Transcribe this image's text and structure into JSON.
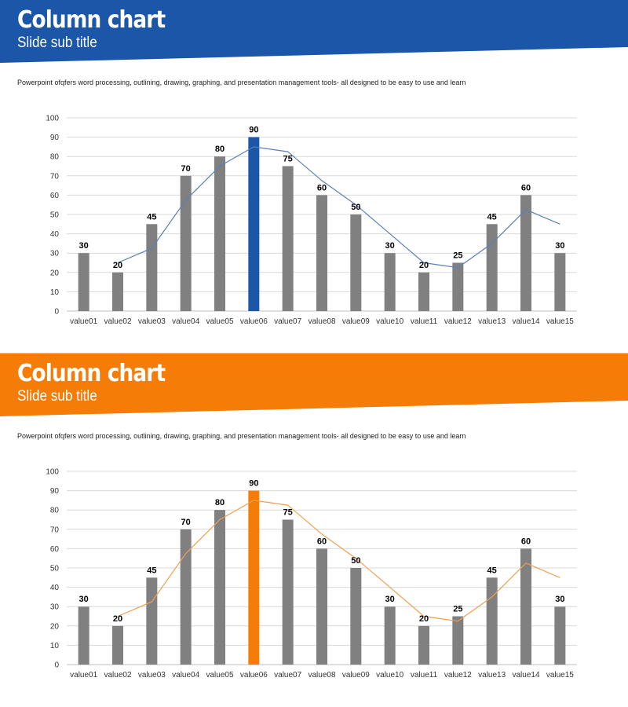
{
  "slides": [
    {
      "title": "Column chart",
      "subtitle": "Slide sub title",
      "description": "Powerpoint ofqfers word processing, outlining, drawing, graphing, and presentation management tools- all designed to be easy to use and learn",
      "banner_color": "#1b56a8",
      "banner_color_dark": "#144386",
      "highlight_color": "#1b56a8",
      "line_color": "#5b80b8"
    },
    {
      "title": "Column chart",
      "subtitle": "Slide sub title",
      "description": "Powerpoint ofqfers word processing, outlining, drawing, graphing, and presentation management tools- all designed to be easy to use and learn",
      "banner_color": "#f47c07",
      "banner_color_dark": "#d96a02",
      "highlight_color": "#f47c07",
      "line_color": "#f0a050"
    }
  ],
  "chart_data": [
    {
      "type": "bar",
      "categories": [
        "value01",
        "value02",
        "value03",
        "value04",
        "value05",
        "value06",
        "value07",
        "value08",
        "value09",
        "value10",
        "value11",
        "value12",
        "value13",
        "value14",
        "value15"
      ],
      "values": [
        30,
        20,
        45,
        70,
        80,
        90,
        75,
        60,
        50,
        30,
        20,
        25,
        45,
        60,
        30
      ],
      "data_labels": [
        "30",
        "20",
        "45",
        "70",
        "80",
        "90",
        "75",
        "60",
        "50",
        "30",
        "20",
        "25",
        "45",
        "60",
        "30"
      ],
      "highlight_index": 5,
      "bar_color": "#808080",
      "trendline": {
        "type": "moving-average",
        "color": "#5b80b8"
      },
      "ylim": [
        0,
        100
      ],
      "yticks": [
        "0",
        "10",
        "20",
        "30",
        "40",
        "50",
        "60",
        "70",
        "80",
        "90",
        "100"
      ],
      "grid": true
    },
    {
      "type": "bar",
      "categories": [
        "value01",
        "value02",
        "value03",
        "value04",
        "value05",
        "value06",
        "value07",
        "value08",
        "value09",
        "value10",
        "value11",
        "value12",
        "value13",
        "value14",
        "value15"
      ],
      "values": [
        30,
        20,
        45,
        70,
        80,
        90,
        75,
        60,
        50,
        30,
        20,
        25,
        45,
        60,
        30
      ],
      "data_labels": [
        "30",
        "20",
        "45",
        "70",
        "80",
        "90",
        "75",
        "60",
        "50",
        "30",
        "20",
        "25",
        "45",
        "60",
        "30"
      ],
      "highlight_index": 5,
      "bar_color": "#808080",
      "trendline": {
        "type": "moving-average",
        "color": "#f0a050"
      },
      "ylim": [
        0,
        100
      ],
      "yticks": [
        "0",
        "10",
        "20",
        "30",
        "40",
        "50",
        "60",
        "70",
        "80",
        "90",
        "100"
      ],
      "grid": true
    }
  ]
}
